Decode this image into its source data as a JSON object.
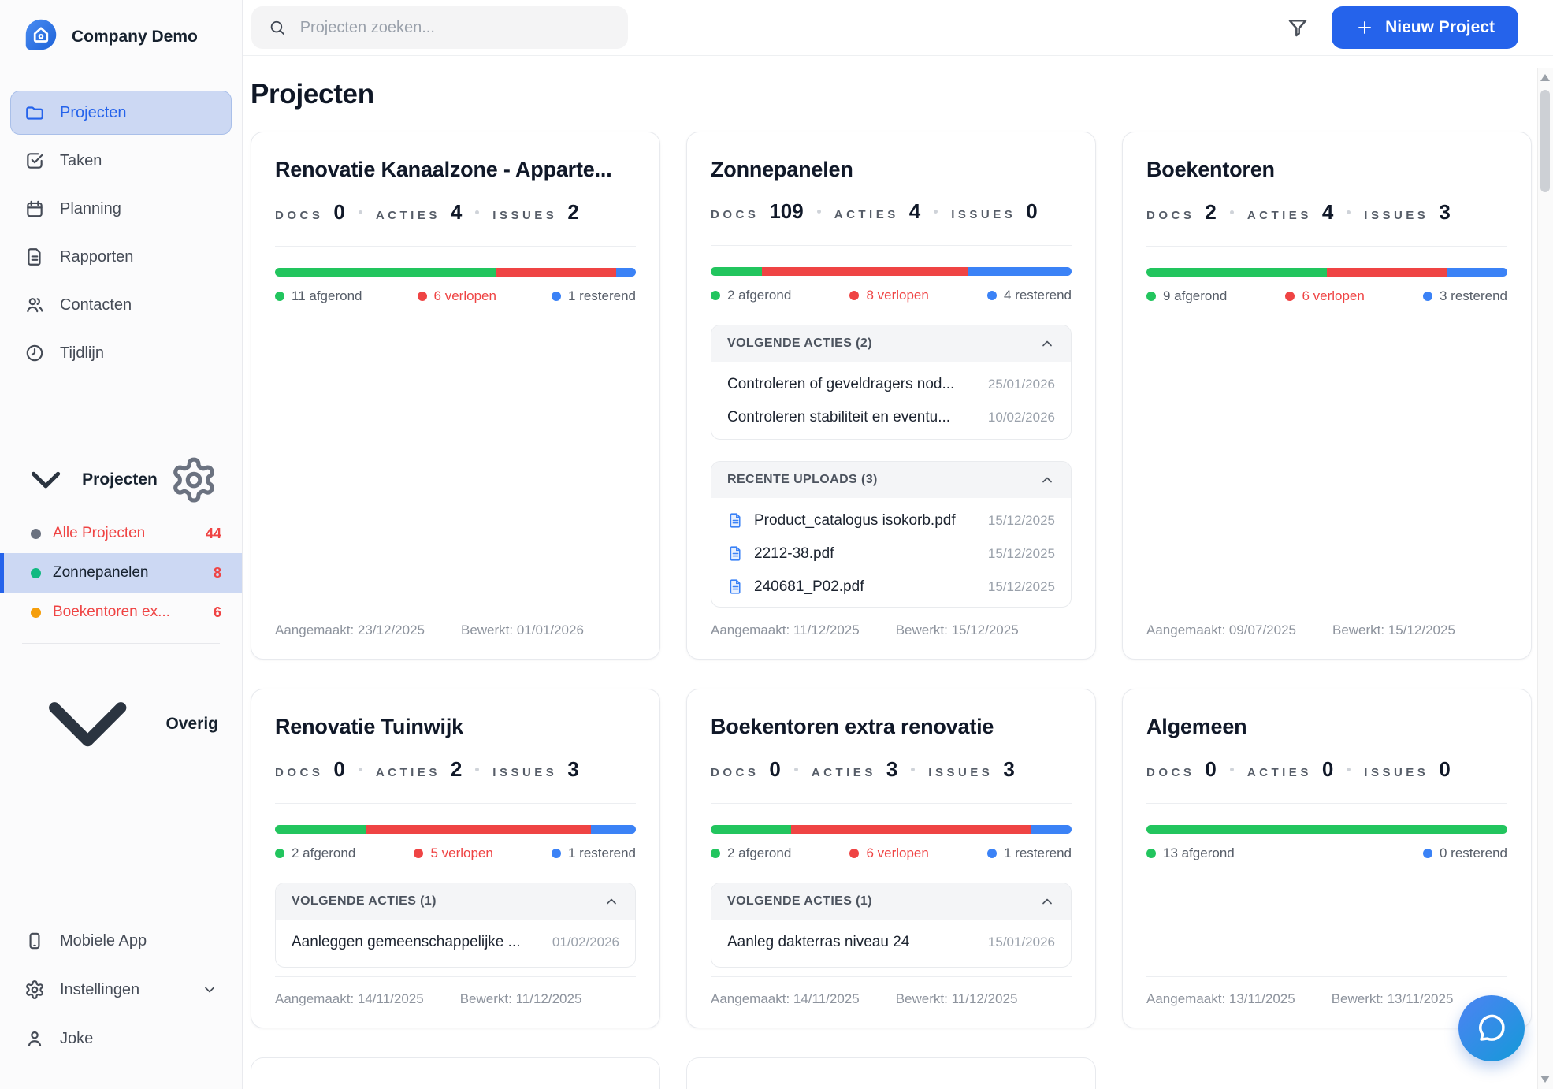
{
  "colors": {
    "accent": "#2563eb",
    "green": "#22c55e",
    "red": "#ef4444",
    "blue": "#3b82f6",
    "orange": "#f59e0b",
    "gray_dot": "#6b7280",
    "emerald": "#10b981"
  },
  "sidebar": {
    "brand": "Company Demo",
    "nav": [
      {
        "label": "Projecten",
        "icon": "folder-icon",
        "active": true
      },
      {
        "label": "Taken",
        "icon": "tasks-icon",
        "active": false
      },
      {
        "label": "Planning",
        "icon": "calendar-icon",
        "active": false
      },
      {
        "label": "Rapporten",
        "icon": "report-icon",
        "active": false
      },
      {
        "label": "Contacten",
        "icon": "contacts-icon",
        "active": false
      },
      {
        "label": "Tijdlijn",
        "icon": "clock-icon",
        "active": false
      }
    ],
    "projects_section": {
      "title": "Projecten",
      "items": [
        {
          "label": "Alle Projecten",
          "count": "44",
          "dot_color": "#6b7280",
          "label_color": "#ef4444",
          "selected": false
        },
        {
          "label": "Zonnepanelen",
          "count": "8",
          "dot_color": "#10b981",
          "label_color": "#16212e",
          "selected": true
        },
        {
          "label": "Boekentoren ex...",
          "count": "6",
          "dot_color": "#f59e0b",
          "label_color": "#ef4444",
          "selected": false
        }
      ]
    },
    "other_section": {
      "title": "Overig"
    },
    "footer": [
      {
        "label": "Mobiele App",
        "icon": "phone-icon",
        "chevron": false
      },
      {
        "label": "Instellingen",
        "icon": "settings-icon",
        "chevron": true
      },
      {
        "label": "Joke",
        "icon": "user-icon",
        "chevron": false
      }
    ]
  },
  "topbar": {
    "search_placeholder": "Projecten zoeken...",
    "new_project_label": "Nieuw Project"
  },
  "main": {
    "title": "Projecten",
    "stat_labels": {
      "docs": "DOCS",
      "acties": "ACTIES",
      "issues": "ISSUES"
    },
    "cards": [
      {
        "title": "Renovatie Kanaalzone - Apparte...",
        "stats": {
          "docs": "0",
          "acties": "4",
          "issues": "2"
        },
        "progress": {
          "done": 11,
          "overdue": 6,
          "remaining": 1
        },
        "legend": {
          "done": "11 afgerond",
          "overdue": "6 verlopen",
          "remaining": "1 resterend"
        },
        "panels": [],
        "created": "Aangemaakt: 23/12/2025",
        "edited": "Bewerkt: 01/01/2026"
      },
      {
        "title": "Zonnepanelen",
        "stats": {
          "docs": "109",
          "acties": "4",
          "issues": "0"
        },
        "progress": {
          "done": 2,
          "overdue": 8,
          "remaining": 4
        },
        "legend": {
          "done": "2 afgerond",
          "overdue": "8 verlopen",
          "remaining": "4 resterend"
        },
        "panels": [
          {
            "type": "actions",
            "title": "VOLGENDE ACTIES (2)",
            "rows": [
              {
                "text": "Controleren of geveldragers nod...",
                "date": "25/01/2026"
              },
              {
                "text": "Controleren stabiliteit en eventu...",
                "date": "10/02/2026"
              }
            ]
          },
          {
            "type": "uploads",
            "title": "RECENTE UPLOADS (3)",
            "rows": [
              {
                "text": "Product_catalogus isokorb.pdf",
                "date": "15/12/2025"
              },
              {
                "text": "2212-38.pdf",
                "date": "15/12/2025"
              },
              {
                "text": "240681_P02.pdf",
                "date": "15/12/2025"
              }
            ]
          }
        ],
        "created": "Aangemaakt: 11/12/2025",
        "edited": "Bewerkt: 15/12/2025"
      },
      {
        "title": "Boekentoren",
        "stats": {
          "docs": "2",
          "acties": "4",
          "issues": "3"
        },
        "progress": {
          "done": 9,
          "overdue": 6,
          "remaining": 3
        },
        "legend": {
          "done": "9 afgerond",
          "overdue": "6 verlopen",
          "remaining": "3 resterend"
        },
        "panels": [],
        "created": "Aangemaakt: 09/07/2025",
        "edited": "Bewerkt: 15/12/2025"
      },
      {
        "title": "Renovatie Tuinwijk",
        "stats": {
          "docs": "0",
          "acties": "2",
          "issues": "3"
        },
        "progress": {
          "done": 2,
          "overdue": 5,
          "remaining": 1
        },
        "legend": {
          "done": "2 afgerond",
          "overdue": "5 verlopen",
          "remaining": "1 resterend"
        },
        "panels": [
          {
            "type": "actions",
            "title": "VOLGENDE ACTIES (1)",
            "rows": [
              {
                "text": "Aanleggen gemeenschappelijke ...",
                "date": "01/02/2026"
              }
            ]
          }
        ],
        "created": "Aangemaakt: 14/11/2025",
        "edited": "Bewerkt: 11/12/2025"
      },
      {
        "title": "Boekentoren extra renovatie",
        "stats": {
          "docs": "0",
          "acties": "3",
          "issues": "3"
        },
        "progress": {
          "done": 2,
          "overdue": 6,
          "remaining": 1
        },
        "legend": {
          "done": "2 afgerond",
          "overdue": "6 verlopen",
          "remaining": "1 resterend"
        },
        "panels": [
          {
            "type": "actions",
            "title": "VOLGENDE ACTIES (1)",
            "rows": [
              {
                "text": "Aanleg dakterras niveau 24",
                "date": "15/01/2026"
              }
            ]
          }
        ],
        "created": "Aangemaakt: 14/11/2025",
        "edited": "Bewerkt: 11/12/2025"
      },
      {
        "title": "Algemeen",
        "stats": {
          "docs": "0",
          "acties": "0",
          "issues": "0"
        },
        "progress": {
          "done": 13,
          "overdue": 0,
          "remaining": 0
        },
        "legend": {
          "done": "13 afgerond",
          "remaining": "0 resterend"
        },
        "panels": [],
        "created": "Aangemaakt: 13/11/2025",
        "edited": "Bewerkt: 13/11/2025"
      }
    ]
  }
}
